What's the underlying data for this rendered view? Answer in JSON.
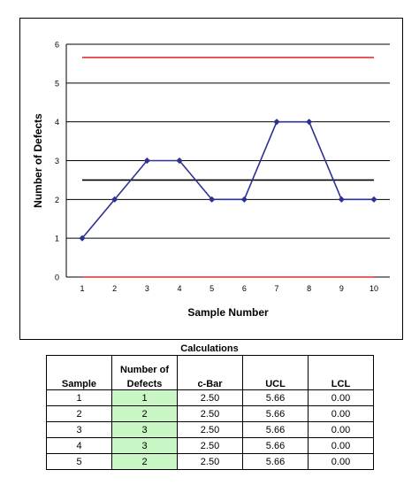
{
  "chart_data": {
    "type": "line",
    "title": "",
    "xlabel": "Sample Number",
    "ylabel": "Number of Defects",
    "x": [
      1,
      2,
      3,
      4,
      5,
      6,
      7,
      8,
      9,
      10
    ],
    "xlim": [
      1,
      10
    ],
    "ylim": [
      0,
      6
    ],
    "yticks": [
      0,
      1,
      2,
      3,
      4,
      5,
      6
    ],
    "grid": "horizontal",
    "series": [
      {
        "values": [
          1,
          2,
          3,
          3,
          2,
          2,
          4,
          4,
          2,
          2
        ],
        "color": "#2e3192",
        "marker": "diamond"
      }
    ],
    "reference_lines": [
      {
        "value": 5.66,
        "color": "#e03030"
      },
      {
        "value": 2.5,
        "color": "#000000"
      },
      {
        "value": 0.0,
        "color": "#e03030"
      }
    ]
  },
  "calculations": {
    "title": "Calculations",
    "headers": {
      "sample": "Sample",
      "defects_line1": "Number of",
      "defects_line2": "Defects",
      "cbar": "c-Bar",
      "ucl": "UCL",
      "lcl": "LCL"
    },
    "rows": [
      {
        "sample": "1",
        "defects": "1",
        "cbar": "2.50",
        "ucl": "5.66",
        "lcl": "0.00"
      },
      {
        "sample": "2",
        "defects": "2",
        "cbar": "2.50",
        "ucl": "5.66",
        "lcl": "0.00"
      },
      {
        "sample": "3",
        "defects": "3",
        "cbar": "2.50",
        "ucl": "5.66",
        "lcl": "0.00"
      },
      {
        "sample": "4",
        "defects": "3",
        "cbar": "2.50",
        "ucl": "5.66",
        "lcl": "0.00"
      },
      {
        "sample": "5",
        "defects": "2",
        "cbar": "2.50",
        "ucl": "5.66",
        "lcl": "0.00"
      }
    ],
    "defect_cell_color": "#c8f7c5"
  }
}
